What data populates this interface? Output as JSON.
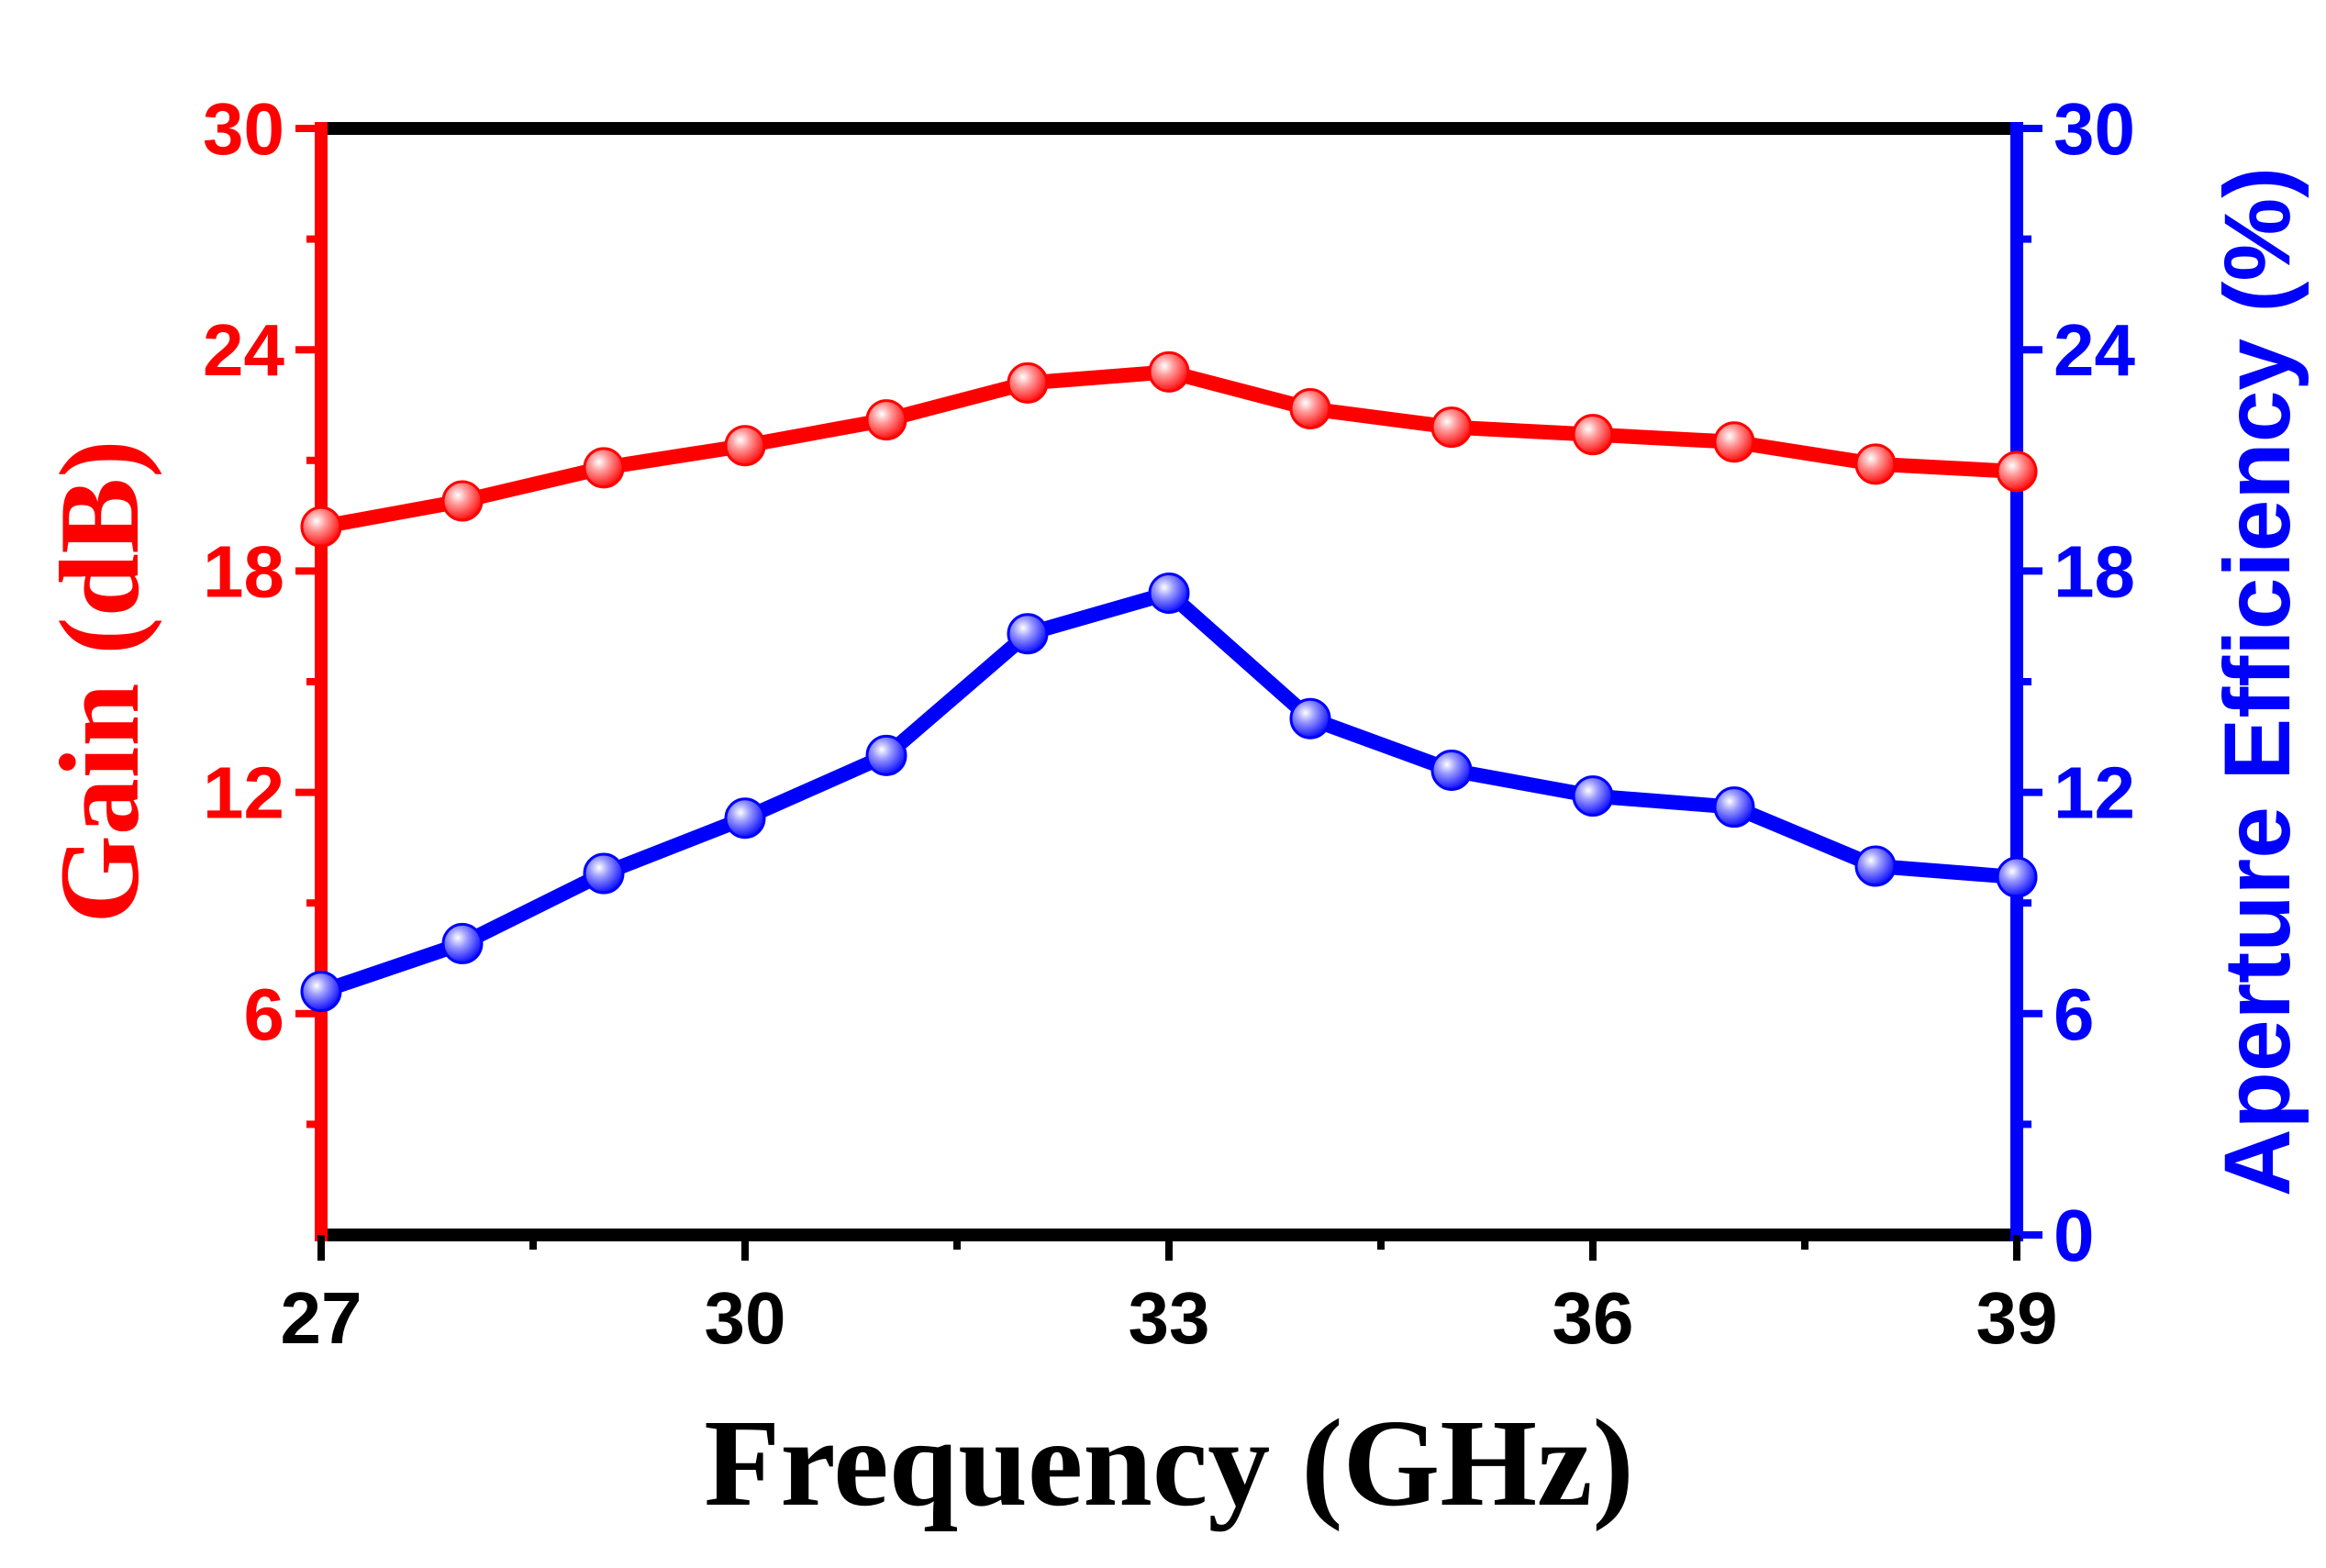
{
  "chart_data": {
    "type": "line",
    "x": [
      27,
      28,
      29,
      30,
      31,
      32,
      33,
      34,
      35,
      36,
      37,
      38,
      39
    ],
    "xlabel": "Frequency (GHz)",
    "xlim": [
      27,
      39
    ],
    "xticks": [
      "27",
      "30",
      "33",
      "36",
      "39"
    ],
    "ylabel_left": "Gain (dB)",
    "ylim_left": [
      0,
      30
    ],
    "yticks_left": [
      "6",
      "12",
      "18",
      "24",
      "30"
    ],
    "ylabel_right": "Aperture Efficiency (%)",
    "ylim_right": [
      0,
      30
    ],
    "yticks_right": [
      "0",
      "6",
      "12",
      "18",
      "24",
      "30"
    ],
    "grid": false,
    "series": [
      {
        "name": "Gain",
        "axis": "left",
        "color": "#ff0000",
        "values": [
          19.2,
          19.9,
          20.8,
          21.4,
          22.1,
          23.1,
          23.4,
          22.4,
          21.9,
          21.7,
          21.5,
          20.9,
          20.7
        ]
      },
      {
        "name": "Aperture Efficiency",
        "axis": "right",
        "color": "#0000ff",
        "values": [
          6.6,
          7.9,
          9.8,
          11.3,
          13.0,
          16.3,
          17.4,
          14.0,
          12.6,
          11.9,
          11.6,
          10.0,
          9.7
        ]
      }
    ]
  },
  "colors": {
    "left_axis": "#ff0000",
    "right_axis": "#0000ff",
    "frame": "#000000"
  }
}
